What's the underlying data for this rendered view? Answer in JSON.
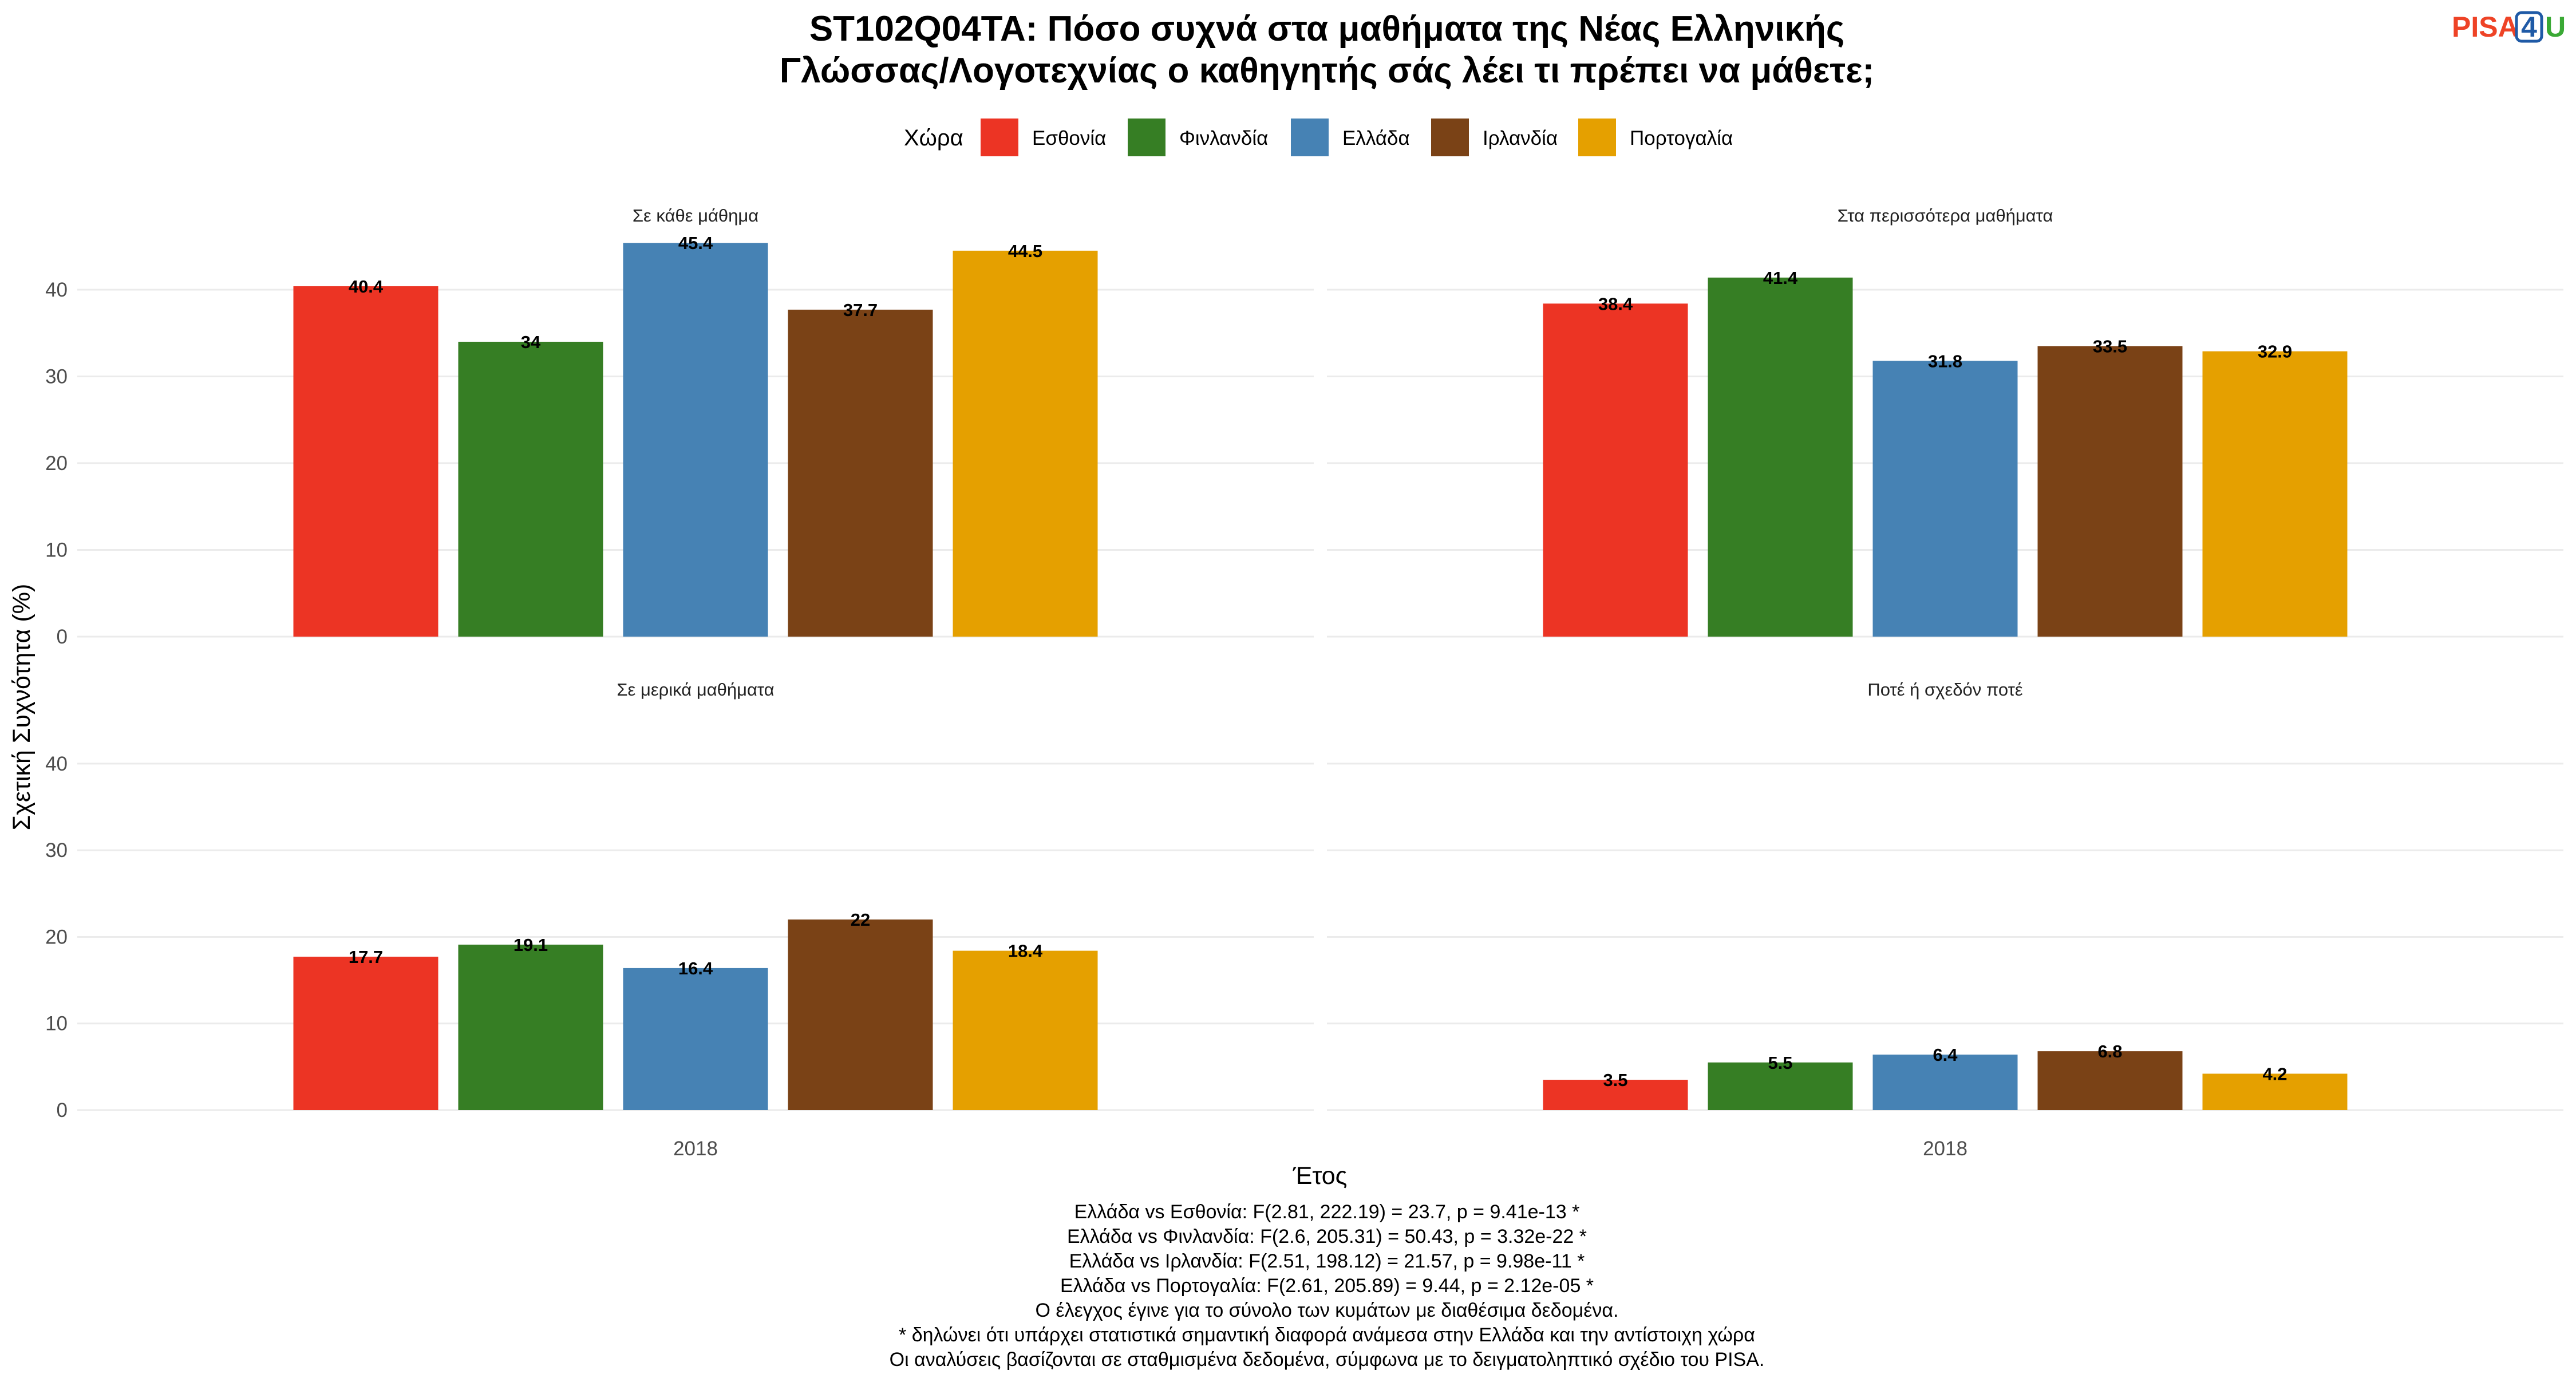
{
  "title": {
    "line1": "ST102Q04TA: Πόσο συχνά στα μαθήματα της Νέας Ελληνικής",
    "line2": "Γλώσσας/Λογοτεχνίας ο καθηγητής σάς λέει τι πρέπει να μάθετε;"
  },
  "logo": {
    "text_left": "PISA",
    "text_box": "4",
    "text_right": "U",
    "color_left": "#ee4326",
    "color_box": "#1f5aa6",
    "color_right": "#3aa935"
  },
  "legend": {
    "title": "Χώρα",
    "items": [
      {
        "label": "Εσθονία",
        "color": "#ec3424"
      },
      {
        "label": "Φινλανδία",
        "color": "#367e24"
      },
      {
        "label": "Ελλάδα",
        "color": "#4682b4"
      },
      {
        "label": "Ιρλανδία",
        "color": "#7a4216"
      },
      {
        "label": "Πορτογαλία",
        "color": "#e5a000"
      }
    ]
  },
  "chart_data": {
    "type": "bar",
    "xlabel": "Έτος",
    "ylabel": "Σχετική Συχνότητα (%)",
    "ylim": [
      0,
      47
    ],
    "yticks": [
      0,
      10,
      20,
      30,
      40
    ],
    "grid": true,
    "legend_position": "top",
    "categories": [
      "2018"
    ],
    "series_names": [
      "Εσθονία",
      "Φινλανδία",
      "Ελλάδα",
      "Ιρλανδία",
      "Πορτογαλία"
    ],
    "panels": [
      {
        "title": "Σε κάθε μάθημα",
        "values": [
          40.4,
          34,
          45.4,
          37.7,
          44.5
        ],
        "labels": [
          "40.4",
          "34",
          "45.4",
          "37.7",
          "44.5"
        ]
      },
      {
        "title": "Στα περισσότερα μαθήματα",
        "values": [
          38.4,
          41.4,
          31.8,
          33.5,
          32.9
        ],
        "labels": [
          "38.4",
          "41.4",
          "31.8",
          "33.5",
          "32.9"
        ]
      },
      {
        "title": "Σε μερικά μαθήματα",
        "values": [
          17.7,
          19.1,
          16.4,
          22,
          18.4
        ],
        "labels": [
          "17.7",
          "19.1",
          "16.4",
          "22",
          "18.4"
        ]
      },
      {
        "title": "Ποτέ ή σχεδόν ποτέ",
        "values": [
          3.5,
          5.5,
          6.4,
          6.8,
          4.2
        ],
        "labels": [
          "3.5",
          "5.5",
          "6.4",
          "6.8",
          "4.2"
        ]
      }
    ]
  },
  "caption": [
    "Ελλάδα vs Εσθονία: F(2.81, 222.19) = 23.7, p = 9.41e-13 *",
    "Ελλάδα vs Φινλανδία: F(2.6, 205.31) = 50.43, p = 3.32e-22 *",
    "Ελλάδα vs Ιρλανδία: F(2.51, 198.12) = 21.57, p = 9.98e-11 *",
    "Ελλάδα vs Πορτογαλία: F(2.61, 205.89) = 9.44, p = 2.12e-05 *",
    "Ο έλεγχος έγινε για το σύνολο των κυμάτων με διαθέσιμα δεδομένα.",
    "* δηλώνει ότι υπάρχει στατιστικά σημαντική διαφορά ανάμεσα στην Ελλάδα και την αντίστοιχη χώρα",
    "Οι αναλύσεις βασίζονται σε σταθμισμένα δεδομένα, σύμφωνα με το δειγματοληπτικό σχέδιο του PISA."
  ]
}
